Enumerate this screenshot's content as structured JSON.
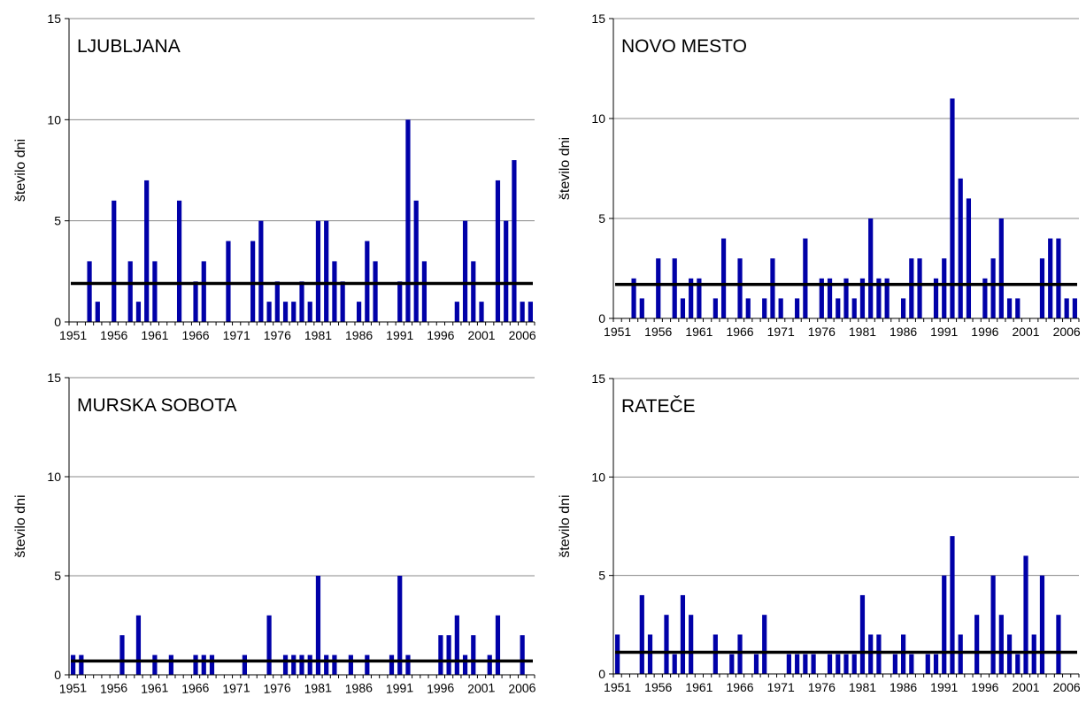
{
  "chart_data": [
    {
      "type": "bar",
      "title": "LJUBLJANA",
      "ylabel": "število dni",
      "ylim": [
        0,
        15
      ],
      "yticks": [
        0,
        5,
        10,
        15
      ],
      "xticks": [
        1951,
        1956,
        1961,
        1966,
        1971,
        1976,
        1981,
        1986,
        1991,
        1996,
        2001,
        2006
      ],
      "grid": true,
      "colors": {
        "bars": "#0000a8",
        "average": "#000000"
      },
      "x": [
        1951,
        1952,
        1953,
        1954,
        1955,
        1956,
        1957,
        1958,
        1959,
        1960,
        1961,
        1962,
        1963,
        1964,
        1965,
        1966,
        1967,
        1968,
        1969,
        1970,
        1971,
        1972,
        1973,
        1974,
        1975,
        1976,
        1977,
        1978,
        1979,
        1980,
        1981,
        1982,
        1983,
        1984,
        1985,
        1986,
        1987,
        1988,
        1989,
        1990,
        1991,
        1992,
        1993,
        1994,
        1995,
        1996,
        1997,
        1998,
        1999,
        2000,
        2001,
        2002,
        2003,
        2004,
        2005,
        2006,
        2007
      ],
      "values": [
        0,
        0,
        3,
        1,
        0,
        6,
        0,
        3,
        1,
        7,
        3,
        0,
        0,
        6,
        0,
        2,
        3,
        0,
        0,
        4,
        0,
        0,
        4,
        5,
        1,
        2,
        1,
        1,
        2,
        1,
        5,
        5,
        3,
        2,
        0,
        1,
        4,
        3,
        0,
        0,
        2,
        10,
        6,
        3,
        0,
        0,
        0,
        1,
        5,
        3,
        1,
        0,
        7,
        5,
        8,
        1,
        1
      ],
      "average": 1.9
    },
    {
      "type": "bar",
      "title": "NOVO MESTO",
      "ylabel": "število dni",
      "ylim": [
        0,
        15
      ],
      "yticks": [
        0,
        5,
        10,
        15
      ],
      "xticks": [
        1951,
        1956,
        1961,
        1966,
        1971,
        1976,
        1981,
        1986,
        1991,
        1996,
        2001,
        2006
      ],
      "grid": true,
      "colors": {
        "bars": "#0000a8",
        "average": "#000000"
      },
      "x": [
        1951,
        1952,
        1953,
        1954,
        1955,
        1956,
        1957,
        1958,
        1959,
        1960,
        1961,
        1962,
        1963,
        1964,
        1965,
        1966,
        1967,
        1968,
        1969,
        1970,
        1971,
        1972,
        1973,
        1974,
        1975,
        1976,
        1977,
        1978,
        1979,
        1980,
        1981,
        1982,
        1983,
        1984,
        1985,
        1986,
        1987,
        1988,
        1989,
        1990,
        1991,
        1992,
        1993,
        1994,
        1995,
        1996,
        1997,
        1998,
        1999,
        2000,
        2001,
        2002,
        2003,
        2004,
        2005,
        2006,
        2007
      ],
      "values": [
        0,
        0,
        2,
        1,
        0,
        3,
        0,
        3,
        1,
        2,
        2,
        0,
        1,
        4,
        0,
        3,
        1,
        0,
        1,
        3,
        1,
        0,
        1,
        4,
        0,
        2,
        2,
        1,
        2,
        1,
        2,
        5,
        2,
        2,
        0,
        1,
        3,
        3,
        0,
        2,
        3,
        11,
        7,
        6,
        0,
        2,
        3,
        5,
        1,
        1,
        0,
        0,
        3,
        4,
        4,
        1,
        1
      ],
      "average": 1.7
    },
    {
      "type": "bar",
      "title": "MURSKA SOBOTA",
      "ylabel": "število dni",
      "ylim": [
        0,
        15
      ],
      "yticks": [
        0,
        5,
        10,
        15
      ],
      "xticks": [
        1951,
        1956,
        1961,
        1966,
        1971,
        1976,
        1981,
        1986,
        1991,
        1996,
        2001,
        2006
      ],
      "grid": true,
      "colors": {
        "bars": "#0000a8",
        "average": "#000000"
      },
      "x": [
        1951,
        1952,
        1953,
        1954,
        1955,
        1956,
        1957,
        1958,
        1959,
        1960,
        1961,
        1962,
        1963,
        1964,
        1965,
        1966,
        1967,
        1968,
        1969,
        1970,
        1971,
        1972,
        1973,
        1974,
        1975,
        1976,
        1977,
        1978,
        1979,
        1980,
        1981,
        1982,
        1983,
        1984,
        1985,
        1986,
        1987,
        1988,
        1989,
        1990,
        1991,
        1992,
        1993,
        1994,
        1995,
        1996,
        1997,
        1998,
        1999,
        2000,
        2001,
        2002,
        2003,
        2004,
        2005,
        2006,
        2007
      ],
      "values": [
        1,
        1,
        0,
        0,
        0,
        0,
        2,
        0,
        3,
        0,
        1,
        0,
        1,
        0,
        0,
        1,
        1,
        1,
        0,
        0,
        0,
        1,
        0,
        0,
        3,
        0,
        1,
        1,
        1,
        1,
        5,
        1,
        1,
        0,
        1,
        0,
        1,
        0,
        0,
        1,
        5,
        1,
        0,
        0,
        0,
        2,
        2,
        3,
        1,
        2,
        0,
        1,
        3,
        0,
        0,
        2,
        0
      ],
      "average": 0.7
    },
    {
      "type": "bar",
      "title": "RATEČE",
      "ylabel": "število dni",
      "ylim": [
        0,
        15
      ],
      "yticks": [
        0,
        5,
        10,
        15
      ],
      "xticks": [
        1951,
        1956,
        1961,
        1966,
        1971,
        1976,
        1981,
        1986,
        1991,
        1996,
        2001,
        2006
      ],
      "grid": true,
      "colors": {
        "bars": "#0000a8",
        "average": "#000000"
      },
      "x": [
        1951,
        1952,
        1953,
        1954,
        1955,
        1956,
        1957,
        1958,
        1959,
        1960,
        1961,
        1962,
        1963,
        1964,
        1965,
        1966,
        1967,
        1968,
        1969,
        1970,
        1971,
        1972,
        1973,
        1974,
        1975,
        1976,
        1977,
        1978,
        1979,
        1980,
        1981,
        1982,
        1983,
        1984,
        1985,
        1986,
        1987,
        1988,
        1989,
        1990,
        1991,
        1992,
        1993,
        1994,
        1995,
        1996,
        1997,
        1998,
        1999,
        2000,
        2001,
        2002,
        2003,
        2004,
        2005,
        2006,
        2007
      ],
      "values": [
        2,
        0,
        0,
        4,
        2,
        0,
        3,
        1,
        4,
        3,
        0,
        0,
        2,
        0,
        1,
        2,
        0,
        1,
        3,
        0,
        0,
        1,
        1,
        1,
        1,
        0,
        1,
        1,
        1,
        1,
        4,
        2,
        2,
        0,
        1,
        2,
        1,
        0,
        1,
        1,
        5,
        7,
        2,
        0,
        3,
        0,
        5,
        3,
        2,
        1,
        6,
        2,
        5,
        0,
        3,
        0,
        0
      ],
      "average": 1.1
    }
  ]
}
